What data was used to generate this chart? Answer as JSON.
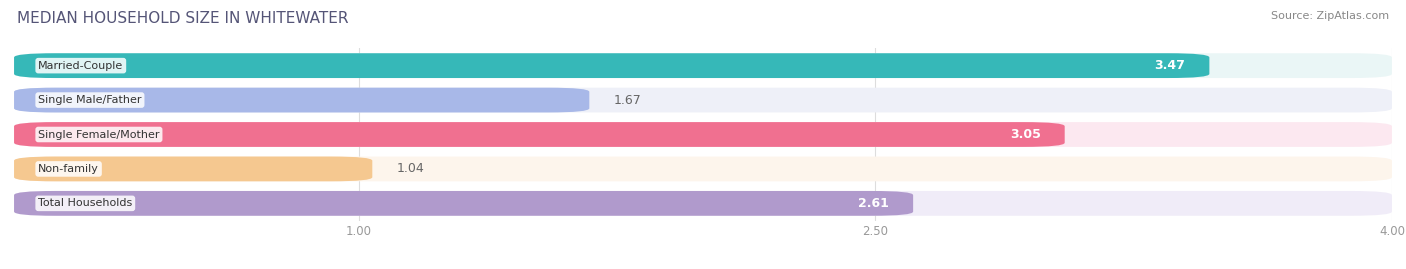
{
  "title": "MEDIAN HOUSEHOLD SIZE IN WHITEWATER",
  "source": "Source: ZipAtlas.com",
  "categories": [
    "Married-Couple",
    "Single Male/Father",
    "Single Female/Mother",
    "Non-family",
    "Total Households"
  ],
  "values": [
    3.47,
    1.67,
    3.05,
    1.04,
    2.61
  ],
  "bar_colors": [
    "#36b8b8",
    "#a8b8e8",
    "#f07090",
    "#f5c890",
    "#b09acc"
  ],
  "bar_bg_colors": [
    "#eaf6f6",
    "#eef0f8",
    "#fce8f0",
    "#fdf5ec",
    "#f0ecf8"
  ],
  "xlim_data": [
    0,
    4.0
  ],
  "xlim_display": [
    0,
    4.0
  ],
  "xticks": [
    1.0,
    2.5,
    4.0
  ],
  "value_inside_threshold": 0.55,
  "title_fontsize": 11,
  "source_fontsize": 8,
  "bar_label_fontsize": 9,
  "category_fontsize": 8,
  "tick_fontsize": 8.5,
  "bar_height": 0.72,
  "bar_gap": 0.28,
  "background_color": "#ffffff",
  "title_color": "#555577",
  "source_color": "#888888",
  "grid_color": "#dddddd",
  "tick_color": "#999999",
  "value_label_inside_color": "#ffffff",
  "value_label_outside_color": "#666666"
}
